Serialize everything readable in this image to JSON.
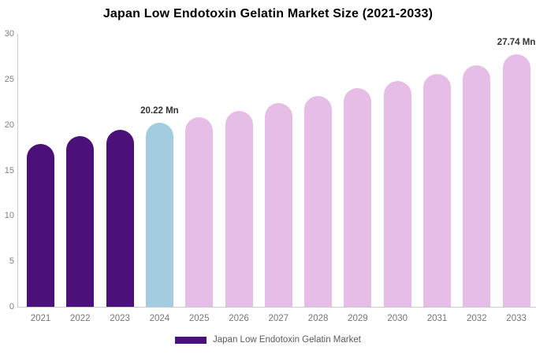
{
  "header": {
    "title": "Japan Low Endotoxin Gelatin Market Size (2021-2033)"
  },
  "legend": {
    "label": "Japan Low Endotoxin Gelatin Market",
    "swatch_color": "#4C1178"
  },
  "colors": {
    "historical_purple": "#4C1178",
    "current_year_blue": "#A4CCE0",
    "forecast_pink": "#E5BDE6",
    "axis_line": "#cccccc",
    "tick_text": "#808080",
    "annotation_text": "#333333"
  },
  "chart_data": {
    "type": "bar",
    "title": "Japan Low Endotoxin Gelatin Market Size (2021-2033)",
    "xlabel": "",
    "ylabel": "",
    "unit": "Mn",
    "categories": [
      "2021",
      "2022",
      "2023",
      "2024",
      "2025",
      "2026",
      "2027",
      "2028",
      "2029",
      "2030",
      "2031",
      "2032",
      "2033"
    ],
    "values": [
      17.9,
      18.8,
      19.45,
      20.22,
      20.85,
      21.55,
      22.4,
      23.2,
      24.0,
      24.8,
      25.6,
      26.5,
      27.74
    ],
    "bar_colors": [
      "#4C1178",
      "#4C1178",
      "#4C1178",
      "#A4CCE0",
      "#E5BDE6",
      "#E5BDE6",
      "#E5BDE6",
      "#E5BDE6",
      "#E5BDE6",
      "#E5BDE6",
      "#E5BDE6",
      "#E5BDE6",
      "#E5BDE6"
    ],
    "yticks": [
      0,
      5,
      10,
      15,
      20,
      25,
      30
    ],
    "ylim": [
      0,
      30
    ],
    "grid": false,
    "legend_position": "bottom",
    "legend_entries": [
      "Japan Low Endotoxin Gelatin Market"
    ],
    "annotations": [
      {
        "category": "2024",
        "text": "20.22 Mn"
      },
      {
        "category": "2033",
        "text": "27.74 Mn"
      }
    ]
  }
}
